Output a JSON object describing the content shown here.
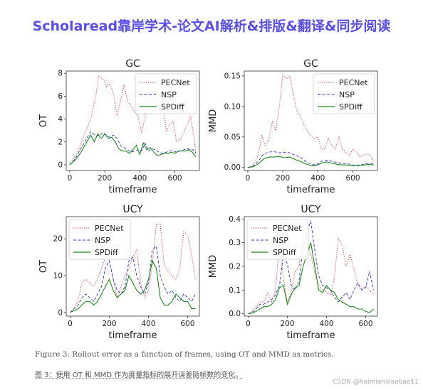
{
  "banner": {
    "text": "Scholaread靠岸学术-论文AI解析&排版&翻译&同步阅读"
  },
  "caption_en": "Figure 3: Rollout error as a function of frames, using OT and MMD as metrics.",
  "caption_zh": "图 3：使用 OT 和 MMD 作为度量指标的展开误差随帧数的变化。",
  "watermark": "CSDN @haimianxiaobao11",
  "colors": {
    "PECNet": "#e03030",
    "NSP": "#2f2fd0",
    "SPDiff": "#1a8a1a"
  },
  "chart_data": [
    {
      "type": "line",
      "title": "GC",
      "xlabel": "timeframe",
      "ylabel": "OT",
      "xlim": [
        -20,
        740
      ],
      "ylim": [
        -0.5,
        8.2
      ],
      "xticks": [
        0,
        200,
        400,
        600
      ],
      "yticks": [
        0,
        2,
        4,
        6,
        8
      ],
      "legend_position": "top-right",
      "series": [
        {
          "name": "PECNet",
          "style": "dotted",
          "x": [
            0,
            30,
            60,
            90,
            120,
            150,
            165,
            180,
            200,
            210,
            230,
            250,
            270,
            290,
            310,
            330,
            350,
            370,
            390,
            410,
            430,
            450,
            470,
            490,
            510,
            530,
            550,
            570,
            590,
            610,
            630,
            650,
            670,
            690,
            710,
            720
          ],
          "y": [
            0,
            0.8,
            1.6,
            2.9,
            4.0,
            6.1,
            7.8,
            7.6,
            7.4,
            6.8,
            7.1,
            6.2,
            4.3,
            5.6,
            7.0,
            5.5,
            5.2,
            4.6,
            4.3,
            2.8,
            4.2,
            6.2,
            5.4,
            6.2,
            4.6,
            6.2,
            2.9,
            3.5,
            3.8,
            2.0,
            2.2,
            2.8,
            3.5,
            4.2,
            2.3,
            1.0
          ]
        },
        {
          "name": "NSP",
          "style": "dashed",
          "x": [
            0,
            30,
            60,
            90,
            120,
            150,
            170,
            190,
            210,
            230,
            250,
            270,
            290,
            310,
            330,
            350,
            370,
            390,
            410,
            430,
            450,
            470,
            490,
            510,
            530,
            550,
            570,
            590,
            610,
            630,
            650,
            670,
            690,
            710,
            720
          ],
          "y": [
            0,
            0.5,
            1.3,
            2.1,
            2.9,
            2.5,
            2.6,
            2.8,
            2.6,
            2.4,
            2.6,
            2.3,
            1.7,
            1.5,
            1.3,
            1.1,
            1.2,
            1.3,
            1.2,
            1.9,
            1.2,
            1.4,
            1.3,
            1.1,
            1.0,
            1.1,
            1.2,
            1.2,
            1.1,
            1.2,
            1.3,
            1.4,
            1.3,
            1.3,
            1.0
          ]
        },
        {
          "name": "SPDiff",
          "style": "solid",
          "x": [
            0,
            30,
            60,
            90,
            120,
            140,
            160,
            180,
            200,
            220,
            240,
            260,
            280,
            300,
            320,
            340,
            360,
            380,
            400,
            420,
            440,
            460,
            480,
            500,
            520,
            540,
            560,
            580,
            600,
            620,
            640,
            660,
            680,
            700,
            720
          ],
          "y": [
            0,
            0.4,
            1.0,
            1.8,
            2.6,
            2.0,
            2.7,
            2.3,
            2.7,
            2.3,
            2.4,
            2.0,
            1.4,
            1.2,
            1.2,
            1.0,
            1.3,
            1.7,
            0.9,
            1.9,
            1.3,
            1.5,
            1.1,
            0.8,
            0.9,
            1.0,
            1.0,
            1.1,
            1.0,
            1.2,
            1.2,
            1.2,
            1.3,
            1.1,
            0.7
          ]
        }
      ]
    },
    {
      "type": "line",
      "title": "GC",
      "xlabel": "timeframe",
      "ylabel": "MMD",
      "xlim": [
        -20,
        740
      ],
      "ylim": [
        -0.005,
        0.158
      ],
      "xticks": [
        0,
        200,
        400,
        600
      ],
      "yticks": [
        0.0,
        0.05,
        0.1,
        0.15
      ],
      "legend_position": "top-right",
      "series": [
        {
          "name": "PECNet",
          "style": "dotted",
          "x": [
            0,
            30,
            60,
            80,
            100,
            120,
            140,
            160,
            180,
            200,
            220,
            240,
            260,
            280,
            300,
            320,
            340,
            360,
            380,
            400,
            420,
            440,
            460,
            480,
            500,
            520,
            540,
            560,
            580,
            600,
            620,
            640,
            660,
            680,
            700,
            720
          ],
          "y": [
            0,
            0.003,
            0.02,
            0.052,
            0.036,
            0.045,
            0.075,
            0.06,
            0.1,
            0.152,
            0.145,
            0.15,
            0.12,
            0.092,
            0.085,
            0.07,
            0.06,
            0.052,
            0.048,
            0.05,
            0.03,
            0.03,
            0.048,
            0.035,
            0.03,
            0.05,
            0.03,
            0.025,
            0.02,
            0.03,
            0.025,
            0.017,
            0.02,
            0.022,
            0.02,
            0.01
          ]
        },
        {
          "name": "NSP",
          "style": "dashed",
          "x": [
            0,
            30,
            60,
            90,
            120,
            150,
            180,
            210,
            240,
            270,
            300,
            330,
            360,
            390,
            420,
            450,
            480,
            510,
            540,
            570,
            600,
            630,
            660,
            690,
            720
          ],
          "y": [
            0,
            0.002,
            0.01,
            0.022,
            0.025,
            0.026,
            0.024,
            0.025,
            0.024,
            0.02,
            0.017,
            0.01,
            0.005,
            0.004,
            0.01,
            0.012,
            0.01,
            0.008,
            0.006,
            0.006,
            0.004,
            0.004,
            0.005,
            0.007,
            0.006
          ]
        },
        {
          "name": "SPDiff",
          "style": "solid",
          "x": [
            0,
            30,
            60,
            90,
            120,
            150,
            180,
            210,
            240,
            270,
            300,
            330,
            360,
            390,
            420,
            450,
            480,
            510,
            540,
            570,
            600,
            630,
            660,
            690,
            720
          ],
          "y": [
            0,
            0.001,
            0.006,
            0.014,
            0.017,
            0.017,
            0.018,
            0.016,
            0.017,
            0.013,
            0.01,
            0.006,
            0.003,
            0.003,
            0.007,
            0.009,
            0.007,
            0.005,
            0.004,
            0.004,
            0.003,
            0.003,
            0.004,
            0.005,
            0.004
          ]
        }
      ]
    },
    {
      "type": "line",
      "title": "UCY",
      "xlabel": "timeframe",
      "ylabel": "OT",
      "xlim": [
        -20,
        660
      ],
      "ylim": [
        -1,
        26
      ],
      "xticks": [
        0,
        200,
        400,
        600
      ],
      "yticks": [
        0,
        10,
        20
      ],
      "legend_position": "top-left",
      "series": [
        {
          "name": "PECNet",
          "style": "dotted",
          "x": [
            0,
            20,
            40,
            60,
            80,
            100,
            120,
            140,
            160,
            180,
            200,
            220,
            240,
            260,
            280,
            300,
            320,
            340,
            360,
            380,
            400,
            420,
            440,
            460,
            480,
            500,
            520,
            540,
            560,
            580,
            600,
            620,
            640
          ],
          "y": [
            0,
            1,
            3,
            8,
            9,
            8,
            7,
            9,
            12,
            15,
            14,
            9,
            4,
            7,
            10,
            12,
            15,
            17,
            8,
            4,
            6,
            13,
            24,
            24,
            13,
            11,
            10,
            9,
            12,
            22,
            21,
            16,
            9
          ]
        },
        {
          "name": "NSP",
          "style": "dashed",
          "x": [
            0,
            20,
            40,
            60,
            80,
            100,
            120,
            140,
            160,
            180,
            200,
            220,
            240,
            260,
            280,
            300,
            320,
            340,
            360,
            380,
            400,
            420,
            440,
            460,
            480,
            500,
            520,
            540,
            560,
            580,
            600,
            620,
            640
          ],
          "y": [
            0,
            1,
            2,
            4,
            5,
            4,
            3,
            5,
            7,
            12,
            14,
            9,
            6,
            5,
            7,
            14,
            15,
            10,
            7,
            5,
            8,
            17,
            18,
            10,
            7,
            5,
            6,
            4,
            3,
            5,
            4,
            3,
            5
          ]
        },
        {
          "name": "SPDiff",
          "style": "solid",
          "x": [
            0,
            20,
            40,
            60,
            80,
            100,
            120,
            140,
            160,
            180,
            200,
            220,
            240,
            260,
            280,
            300,
            320,
            340,
            360,
            380,
            400,
            420,
            440,
            460,
            480,
            500,
            520,
            540,
            560,
            580,
            600,
            620,
            640
          ],
          "y": [
            0,
            0.5,
            1,
            2,
            3,
            3,
            2,
            3,
            5,
            7,
            9,
            6,
            4,
            5,
            6,
            10,
            8,
            6,
            5,
            6,
            9,
            14,
            12,
            4,
            2,
            2,
            3,
            5,
            4,
            3,
            3,
            1,
            1
          ]
        }
      ]
    },
    {
      "type": "line",
      "title": "UCY",
      "xlabel": "timeframe",
      "ylabel": "MMD",
      "xlim": [
        -20,
        660
      ],
      "ylim": [
        -0.01,
        0.41
      ],
      "xticks": [
        0,
        200,
        400,
        600
      ],
      "yticks": [
        0.0,
        0.1,
        0.2,
        0.3,
        0.4
      ],
      "legend_position": "top-left",
      "series": [
        {
          "name": "PECNet",
          "style": "dotted",
          "x": [
            0,
            20,
            40,
            60,
            80,
            100,
            120,
            140,
            160,
            180,
            200,
            220,
            240,
            260,
            280,
            300,
            320,
            340,
            360,
            380,
            400,
            420,
            440,
            460,
            480,
            500,
            520,
            540,
            560,
            580,
            600,
            620,
            640
          ],
          "y": [
            0,
            0.01,
            0.03,
            0.05,
            0.05,
            0.09,
            0.05,
            0.1,
            0.3,
            0.15,
            0.05,
            0.09,
            0.18,
            0.2,
            0.32,
            0.31,
            0.25,
            0.17,
            0.12,
            0.1,
            0.09,
            0.08,
            0.15,
            0.32,
            0.29,
            0.2,
            0.25,
            0.19,
            0.12,
            0.1,
            0.12,
            0.1,
            0.08
          ]
        },
        {
          "name": "NSP",
          "style": "dashed",
          "x": [
            0,
            20,
            40,
            60,
            80,
            100,
            120,
            140,
            160,
            180,
            200,
            220,
            240,
            260,
            280,
            300,
            320,
            340,
            360,
            380,
            400,
            420,
            440,
            460,
            480,
            500,
            520,
            540,
            560,
            580,
            600,
            620,
            640
          ],
          "y": [
            0,
            0.005,
            0.02,
            0.04,
            0.04,
            0.05,
            0.06,
            0.08,
            0.12,
            0.25,
            0.21,
            0.12,
            0.1,
            0.14,
            0.28,
            0.35,
            0.39,
            0.27,
            0.16,
            0.12,
            0.11,
            0.1,
            0.07,
            0.05,
            0.07,
            0.09,
            0.06,
            0.1,
            0.13,
            0.1,
            0.11,
            0.18,
            0.1
          ]
        },
        {
          "name": "SPDiff",
          "style": "solid",
          "x": [
            0,
            20,
            40,
            60,
            80,
            100,
            120,
            140,
            160,
            180,
            200,
            220,
            240,
            260,
            280,
            300,
            320,
            340,
            360,
            380,
            400,
            420,
            440,
            460,
            480,
            500,
            520,
            540,
            560,
            580,
            600,
            620,
            640
          ],
          "y": [
            0,
            0.003,
            0.01,
            0.02,
            0.03,
            0.03,
            0.04,
            0.06,
            0.11,
            0.12,
            0.04,
            0.08,
            0.11,
            0.12,
            0.2,
            0.25,
            0.3,
            0.2,
            0.1,
            0.09,
            0.12,
            0.1,
            0.09,
            0.06,
            0.05,
            0.04,
            0.03,
            0.03,
            0.02,
            0.02,
            0.01,
            0.005,
            0.02
          ]
        }
      ]
    }
  ]
}
